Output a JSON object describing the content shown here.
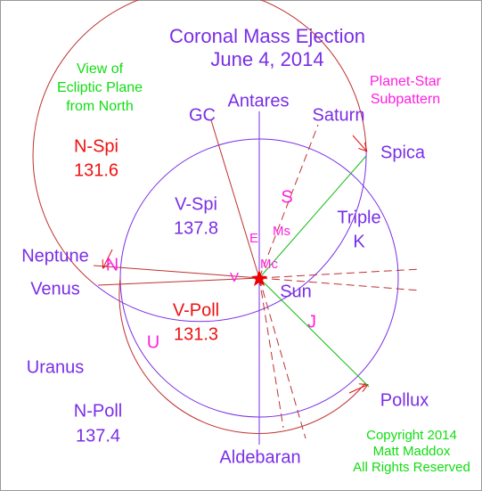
{
  "title": [
    "Coronal Mass Ejection",
    "June 4, 2014"
  ],
  "view_note": [
    "View of",
    "Ecliptic Plane",
    "from North"
  ],
  "subpattern_note": [
    "Planet-Star",
    "Subpattern"
  ],
  "labels": {
    "antares": "Antares",
    "gc": "GC",
    "saturn": "Saturn",
    "spica": "Spica",
    "neptune": "Neptune",
    "venus": "Venus",
    "sun": "Sun",
    "uranus": "Uranus",
    "pollux": "Pollux",
    "aldebaran": "Aldebaran",
    "triple": "Triple",
    "k": "K"
  },
  "angles": {
    "n_spi": {
      "name": "N-Spi",
      "value": 131.6
    },
    "v_spi": {
      "name": "V-Spi",
      "value": 137.8
    },
    "v_poll": {
      "name": "V-Poll",
      "value": 131.3
    },
    "n_poll": {
      "name": "N-Poll",
      "value": 137.4
    }
  },
  "glyphs": {
    "s": "S",
    "ms": "Ms",
    "e": "E",
    "mc": "Mc",
    "v": "V",
    "n": "N",
    "u": "U",
    "j": "J"
  },
  "copyright": [
    "Copyright 2014",
    "Matt Maddox",
    "All Rights Reserved"
  ]
}
